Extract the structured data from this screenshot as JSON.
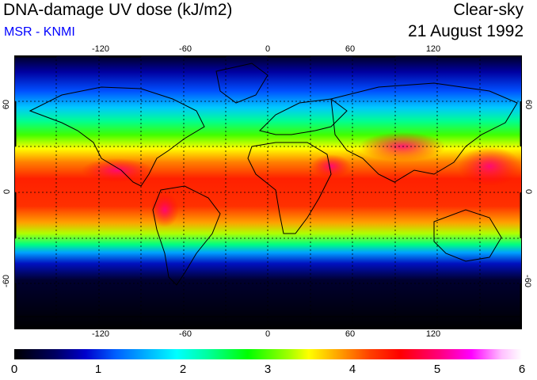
{
  "header": {
    "title": "DNA-damage UV dose (kJ/m2)",
    "source": "MSR - KNMI",
    "condition": "Clear-sky",
    "date": "21 August 1992"
  },
  "map": {
    "lon_ticks": [
      "-120",
      "-60",
      "0",
      "60",
      "120"
    ],
    "lat_ticks_left": [
      "60",
      "0",
      "-60"
    ],
    "lat_ticks_right": [
      "60",
      "0",
      "-60"
    ],
    "lon_range": [
      -180,
      180
    ],
    "lat_range": [
      -90,
      90
    ],
    "gridlines": "dotted every 30 degrees"
  },
  "colorbar": {
    "labels": [
      "0",
      "1",
      "2",
      "3",
      "4",
      "5",
      "6"
    ],
    "range": [
      0,
      6
    ]
  },
  "colors": {
    "subtitle": "#0000ff",
    "ocean_low": "#000000",
    "high": "#ff0000"
  }
}
